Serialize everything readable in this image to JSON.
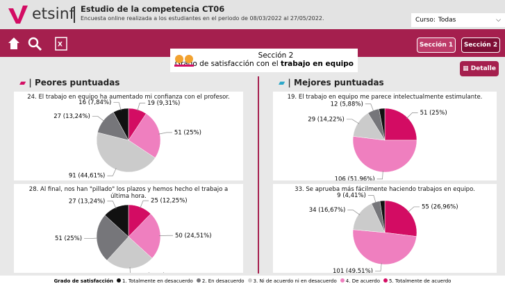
{
  "header": {
    "brand": "etsinf",
    "title": "Estudio de la competencia CT06",
    "subtitle": "Encuesta online realizada a los estudiantes en el periodo de 08/03/2022 al 27/05/2022.",
    "course_label": "Curso:",
    "course_value": "Todas"
  },
  "toolbar": {
    "buttons": [
      "Sección 1",
      "Sección 2"
    ],
    "detail": "Detalle"
  },
  "section": {
    "title": "Sección 2",
    "heading": "Grado de satisfacción con el",
    "heading_bold": "trabajo en equipo"
  },
  "panels": [
    {
      "title": "Peores puntuadas",
      "charts": [
        {
          "type": "pie",
          "title": "24. El trabajo en equipo ha aumentado mi confianza con el profesor.",
          "values": [
            16,
            27,
            91,
            51,
            19
          ],
          "value_labels": [
            "16 (7,84%)",
            "27 (13,24%)",
            "91 (44,61%)",
            "51 (25%)",
            "19 (9,31%)"
          ]
        },
        {
          "type": "pie",
          "title": "28. Al final, nos han \"pillado\" los plazos y hemos hecho el trabajo a última hora.",
          "values": [
            27,
            51,
            51,
            50,
            25
          ],
          "value_labels": [
            "27 (13,24%)",
            "51 (25%)",
            "51 (25%)",
            "50 (24,51%)",
            "25 (12,25%)"
          ]
        }
      ]
    },
    {
      "title": "Mejores puntuadas",
      "charts": [
        {
          "type": "pie",
          "title": "19. El trabajo en equipo me parece intelectualmente estimulante.",
          "values": [
            6,
            12,
            29,
            106,
            51
          ],
          "value_labels": [
            null,
            "12 (5,88%)",
            "29 (14,22%)",
            "106 (51,96%)",
            "51 (25%)"
          ]
        },
        {
          "type": "pie",
          "title": "33. Se aprueba más fácilmente haciendo trabajos en equipo.",
          "values": [
            5,
            9,
            34,
            101,
            55
          ],
          "value_labels": [
            null,
            "9 (4,41%)",
            "34 (16,67%)",
            "101 (49,51%)",
            "55 (26,96%)"
          ]
        }
      ]
    }
  ],
  "legend": {
    "title": "Grado de satisfacción",
    "categories": [
      "1. Totalmente en desacuerdo",
      "2. En desacuerdo",
      "3. Ni de acuerdo ni en desacuerdo",
      "4. De acuerdo",
      "5. Totalmente de acuerdo"
    ],
    "colors": [
      "#111111",
      "#76767a",
      "#cbcbcb",
      "#ef7fbf",
      "#d30c63"
    ]
  }
}
